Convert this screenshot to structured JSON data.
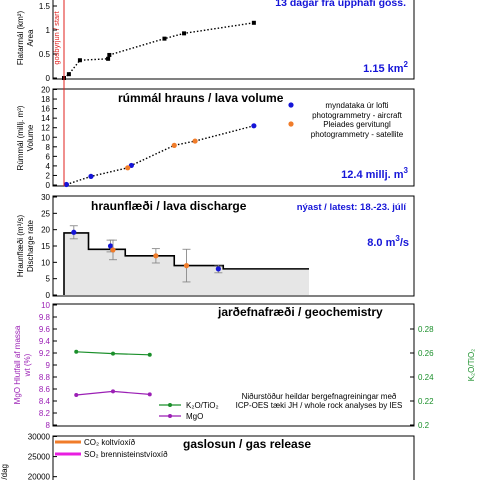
{
  "colors": {
    "black": "#000000",
    "blue": "#1515d8",
    "orange": "#f07c2a",
    "red": "#e0211d",
    "green": "#1a8f2a",
    "purple": "#9b1fb5",
    "magenta": "#e81ee0",
    "fill_gray": "#e6e6e6"
  },
  "chart_data": [
    {
      "type": "line",
      "panel": "area",
      "title": "",
      "corner_label": "13 dagar frá upphafi goss.",
      "value_label": "1.15 km",
      "value_label_sup": "2",
      "ylabel_lines": [
        "Flatarmál (km²)",
        "Area"
      ],
      "event_label": "gosbyrjun / start",
      "event_x": 0,
      "ylim": [
        0,
        1.5
      ],
      "yticks": [
        "0",
        "0.5",
        "1",
        "1.5"
      ],
      "xlim": [
        0,
        15
      ],
      "series": [
        {
          "x": [
            0,
            0.4,
            1.3,
            3.6,
            3.7,
            8.2,
            9.8,
            15.5
          ],
          "y": [
            0,
            0.08,
            0.37,
            0.4,
            0.48,
            0.82,
            0.93,
            1.15
          ]
        }
      ]
    },
    {
      "type": "line",
      "panel": "volume",
      "title": "rúmmál hrauns / lava volume",
      "value_label": "12.4 millj. m",
      "value_label_sup": "3",
      "ylabel_lines": [
        "Rúmmál (millj. m³)",
        "Volume"
      ],
      "ylim": [
        0,
        20
      ],
      "yticks": [
        "0",
        "2",
        "4",
        "6",
        "8",
        "10",
        "12",
        "14",
        "16",
        "18",
        "20"
      ],
      "legend": [
        {
          "name_lines": [
            "myndataka úr lofti",
            "photogrammetry - aircraft"
          ],
          "color": "blue"
        },
        {
          "name_lines": [
            "Pleiades gervitungl",
            "photogrammetry - satellite"
          ],
          "color": "orange"
        }
      ],
      "series": [
        {
          "name": "myndataka úr lofti",
          "x": [
            0.2,
            2.2,
            5.5,
            15.5
          ],
          "y": [
            0.1,
            1.8,
            4.1,
            12.4
          ]
        },
        {
          "name": "Pleiades gervitungl",
          "x": [
            5.2,
            9.0,
            10.7
          ],
          "y": [
            3.6,
            8.3,
            9.2
          ]
        }
      ]
    },
    {
      "type": "bar",
      "panel": "discharge",
      "title": "hraunflæði / lava discharge",
      "corner_label": "nýast / latest: 18.-23. júlí",
      "value_label": "8.0 m",
      "value_label_sup": "3",
      "value_label_suffix": "/s",
      "ylabel_lines": [
        "Hraunflæði (m³/s)",
        "Discharge rate"
      ],
      "ylim": [
        0,
        30
      ],
      "yticks": [
        "0",
        "5",
        "10",
        "15",
        "20",
        "25",
        "30"
      ],
      "steps": [
        {
          "x0": 0,
          "x1": 2,
          "value": 19
        },
        {
          "x0": 2,
          "x1": 5,
          "value": 14
        },
        {
          "x0": 5,
          "x1": 9,
          "value": 12
        },
        {
          "x0": 9,
          "x1": 13,
          "value": 9
        },
        {
          "x0": 13,
          "x1": 20,
          "value": 8
        }
      ],
      "series": [
        {
          "name": "myndataka úr lofti",
          "x": [
            0.8,
            3.8,
            12.6
          ],
          "y": [
            19.2,
            15.0,
            8.0
          ],
          "err": [
            2.0,
            1.8,
            1.2
          ]
        },
        {
          "name": "Pleiades gervitungl",
          "x": [
            4.0,
            7.5,
            10.0
          ],
          "y": [
            13.8,
            12.0,
            9.0
          ],
          "err": [
            3.0,
            2.2,
            5.0
          ]
        }
      ]
    },
    {
      "type": "line",
      "panel": "geochemistry",
      "title": "jarðefnafræði / geochemistry",
      "ylabel_lines": [
        "MgO Hlutfall af massa",
        "wt (%)"
      ],
      "y2label": "K₂O/TiO₂",
      "ylim": [
        8,
        10
      ],
      "yticks": [
        "8",
        "8.2",
        "8.4",
        "8.6",
        "8.8",
        "9",
        "9.2",
        "9.4",
        "9.6",
        "9.8",
        "10"
      ],
      "y2lim": [
        0.2,
        0.3
      ],
      "y2ticks": [
        "0.2",
        "0.22",
        "0.24",
        "0.26",
        "0.28"
      ],
      "note_lines": [
        "Niðurstöður heildar bergefnagreiningar með",
        "ICP-OES tæki JH / whole rock analyses by IES"
      ],
      "legend": [
        {
          "name": "K₂O/TiO₂",
          "color": "green"
        },
        {
          "name": "MgO",
          "color": "purple"
        }
      ],
      "series": [
        {
          "name": "K₂O/TiO₂",
          "axis": "y2",
          "x": [
            1.0,
            4.0,
            7.0
          ],
          "y": [
            0.261,
            0.2595,
            0.2585
          ]
        },
        {
          "name": "MgO",
          "axis": "y",
          "x": [
            1.0,
            4.0,
            7.0
          ],
          "y": [
            8.5,
            8.56,
            8.51
          ]
        }
      ]
    },
    {
      "type": "line",
      "panel": "gas",
      "title": "gaslosun / gas release",
      "ylabel_lines": [
        "n/dag"
      ],
      "ylim": [
        0,
        30000
      ],
      "yticks": [
        "20000",
        "25000",
        "30000"
      ],
      "legend": [
        {
          "name": "CO₂ koltvíoxíð",
          "color": "orange"
        },
        {
          "name": "SO₂ brennisteinstvíoxíð",
          "color": "magenta"
        }
      ]
    }
  ]
}
